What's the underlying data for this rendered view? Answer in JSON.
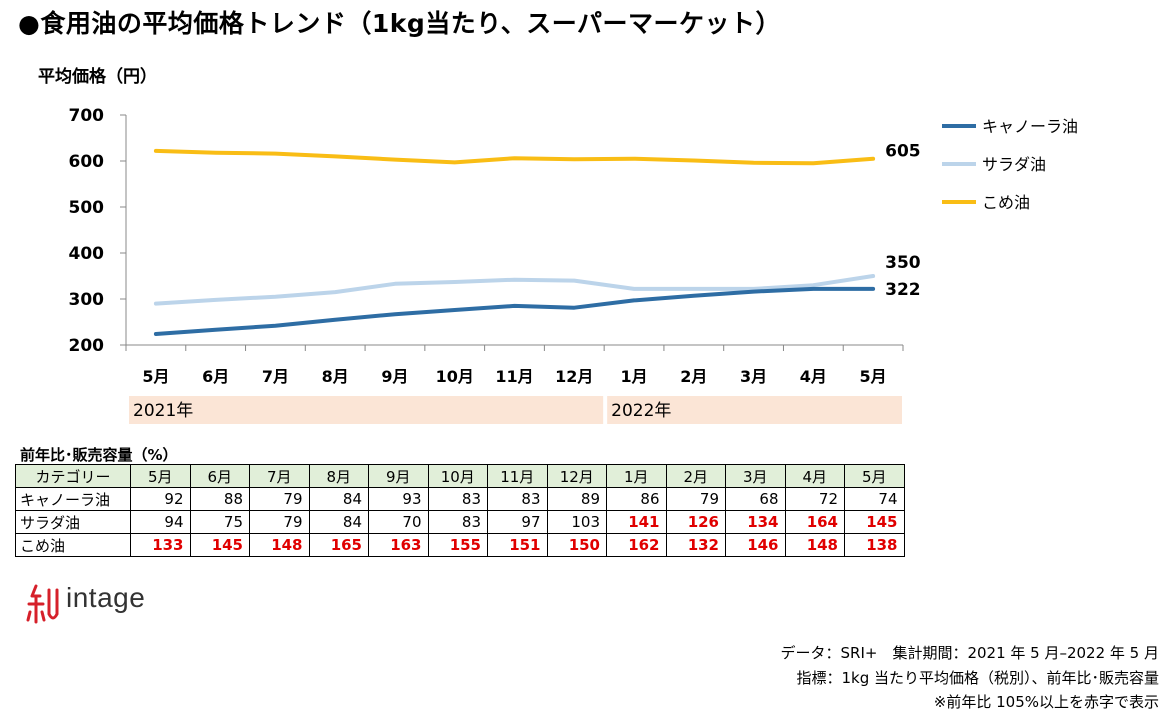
{
  "title": "●食用油の平均価格トレンド（1kg当たり、スーパーマーケット）",
  "chart_data": {
    "type": "line",
    "ylabel": "平均価格（円）",
    "ylim": [
      200,
      700
    ],
    "yticks": [
      "200",
      "300",
      "400",
      "500",
      "600",
      "700"
    ],
    "categories": [
      "5月",
      "6月",
      "7月",
      "8月",
      "9月",
      "10月",
      "11月",
      "12月",
      "1月",
      "2月",
      "3月",
      "4月",
      "5月"
    ],
    "year_bands": [
      {
        "label": "2021年",
        "from": 0,
        "to": 7
      },
      {
        "label": "2022年",
        "from": 8,
        "to": 12
      }
    ],
    "series": [
      {
        "name": "キャノーラ油",
        "color": "#2e6da4",
        "end_label": "322",
        "values": [
          224,
          233,
          242,
          255,
          267,
          276,
          285,
          281,
          297,
          307,
          316,
          322,
          322
        ]
      },
      {
        "name": "サラダ油",
        "color": "#bcd4ea",
        "end_label": "350",
        "values": [
          290,
          298,
          305,
          315,
          333,
          337,
          342,
          340,
          322,
          322,
          322,
          330,
          350
        ]
      },
      {
        "name": "こめ油",
        "color": "#f9bd15",
        "end_label": "605",
        "values": [
          622,
          618,
          616,
          610,
          603,
          597,
          606,
          604,
          605,
          601,
          596,
          595,
          605
        ]
      }
    ]
  },
  "table": {
    "caption": "前年比･販売容量（%）",
    "header_first": "カテゴリー",
    "months": [
      "5月",
      "6月",
      "7月",
      "8月",
      "9月",
      "10月",
      "11月",
      "12月",
      "1月",
      "2月",
      "3月",
      "4月",
      "5月"
    ],
    "rows": [
      {
        "category": "キャノーラ油",
        "values": [
          "92",
          "88",
          "79",
          "84",
          "93",
          "83",
          "83",
          "89",
          "86",
          "79",
          "68",
          "72",
          "74"
        ]
      },
      {
        "category": "サラダ油",
        "values": [
          "94",
          "75",
          "79",
          "84",
          "70",
          "83",
          "97",
          "103",
          "141",
          "126",
          "134",
          "164",
          "145"
        ]
      },
      {
        "category": "こめ油",
        "values": [
          "133",
          "145",
          "148",
          "165",
          "163",
          "155",
          "151",
          "150",
          "162",
          "132",
          "146",
          "148",
          "138"
        ]
      }
    ],
    "highlight_threshold": 105
  },
  "logo": {
    "text": "intage"
  },
  "footnotes": {
    "line1": "データ：SRI+　集計期間：2021 年 5 月–2022 年 5 月",
    "line2": "指標：1kg 当たり平均価格（税別）、前年比･販売容量",
    "line3": "※前年比 105%以上を赤字で表示"
  },
  "colors": {
    "band": "#fbe5d6",
    "header": "#e1efd9",
    "highlight": "#e00000",
    "logo": "#d6202a"
  }
}
